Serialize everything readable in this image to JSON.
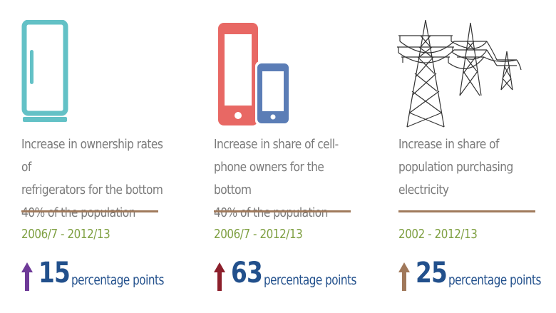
{
  "panels": [
    {
      "icon": "refrigerator-icon",
      "description": "Increase in ownership rates of\nrefrigerators for the bottom\n40% of the population",
      "period": "2006/7 - 2012/13",
      "value": "15",
      "unit": "percentage points",
      "arrow_color": "#6e3a98"
    },
    {
      "icon": "cellphone-icon",
      "description": "Increase in share of cell-\nphone owners for the bottom\n40% of the population",
      "period": "2006/7 - 2012/13",
      "value": "63",
      "unit": "percentage points",
      "arrow_color": "#8c1f2b"
    },
    {
      "icon": "power-transmission-tower-icon",
      "description": "Increase in share of\npopulation purchasing\nelectricity",
      "period": "2002 - 2012/13",
      "value": "25",
      "unit": "percentage points",
      "arrow_color": "#a0785a"
    }
  ],
  "colors": {
    "fridge": "#63c1c6",
    "phone_large": "#e86864",
    "phone_small": "#5b7db6",
    "tower": "#333333",
    "divider": "#a07a5c",
    "period": "#7fa042",
    "stat": "#22508c",
    "description": "#7a7a7a"
  }
}
